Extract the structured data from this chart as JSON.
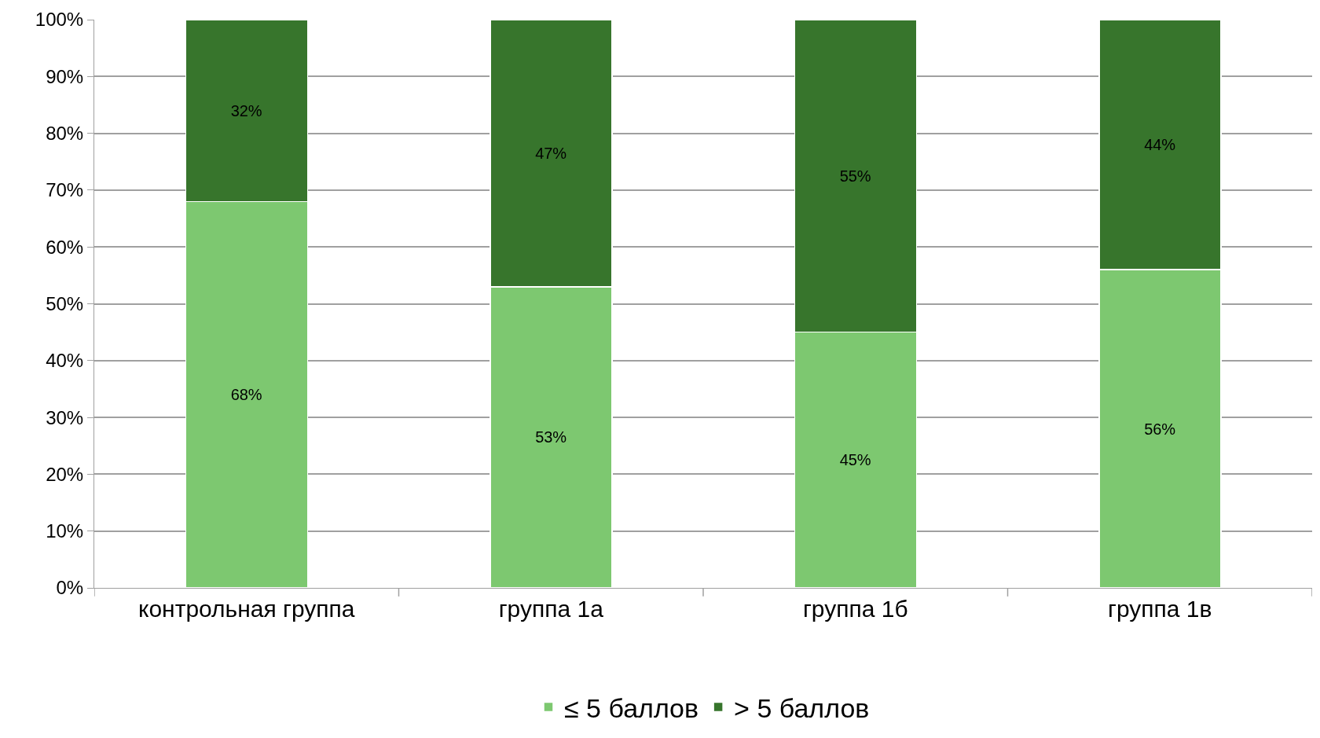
{
  "chart_data": {
    "type": "bar",
    "stacked": true,
    "categories": [
      "контрольная группа",
      "группа 1а",
      "группа 1б",
      "группа 1в"
    ],
    "series": [
      {
        "name": "≤ 5 баллов",
        "color": "#7dc870",
        "values": [
          68,
          53,
          45,
          56
        ]
      },
      {
        "name": "> 5 баллов",
        "color": "#37752c",
        "values": [
          32,
          47,
          55,
          44
        ]
      }
    ],
    "ylim": [
      0,
      100
    ],
    "yticks": [
      {
        "value": 0,
        "label": "0%"
      },
      {
        "value": 10,
        "label": "10%"
      },
      {
        "value": 20,
        "label": "20%"
      },
      {
        "value": 30,
        "label": "30%"
      },
      {
        "value": 40,
        "label": "40%"
      },
      {
        "value": 50,
        "label": "50%"
      },
      {
        "value": 60,
        "label": "60%"
      },
      {
        "value": 70,
        "label": "70%"
      },
      {
        "value": 80,
        "label": "80%"
      },
      {
        "value": 90,
        "label": "90%"
      },
      {
        "value": 100,
        "label": "100%"
      }
    ],
    "value_labels": [
      [
        "68%",
        "53%",
        "45%",
        "56%"
      ],
      [
        "32%",
        "47%",
        "55%",
        "44%"
      ]
    ],
    "grid": "y",
    "legend": "bottom"
  }
}
